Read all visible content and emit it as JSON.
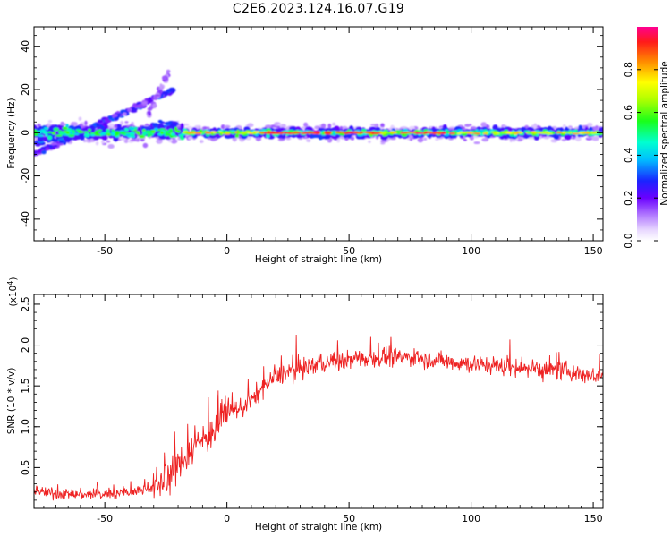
{
  "title": "C2E6.2023.124.16.07.G19",
  "chart_data": [
    {
      "type": "heatmap",
      "xlabel": "Height of straight line (km)",
      "ylabel": "Frequency (Hz)",
      "xlim": [
        -79,
        154
      ],
      "ylim": [
        -50,
        49
      ],
      "xticks": [
        "-50",
        "0",
        "50",
        "100",
        "150"
      ],
      "yticks": [
        "-40",
        "-20",
        "0",
        "20",
        "40"
      ],
      "colorbar": {
        "label": "Normalized spectral amplitude",
        "ticks": [
          "0.0",
          "0.2",
          "0.4",
          "0.6",
          "0.8"
        ],
        "range": [
          0,
          1
        ]
      },
      "features": [
        {
          "x": [
            -18,
            154
          ],
          "frequency": 0,
          "amplitude": [
            0.3,
            1.0
          ]
        },
        {
          "x": [
            -79,
            -18
          ],
          "frequency_start": 0,
          "frequency_end": 0,
          "amplitude": [
            0.2,
            0.6
          ]
        },
        {
          "x": [
            -79,
            -22
          ],
          "frequency_start": -10,
          "frequency_end": 20,
          "amplitude": [
            0.1,
            0.4
          ]
        }
      ]
    },
    {
      "type": "line",
      "xlabel": "Height of straight line (km)",
      "ylabel": "SNR (10 * v/v)",
      "scale_label": "(x10",
      "scale_exponent": "4",
      "scale_close": ")",
      "xlim": [
        -79,
        154
      ],
      "ylim": [
        0,
        2.62
      ],
      "xticks": [
        "-50",
        "0",
        "50",
        "100",
        "150"
      ],
      "yticks": [
        "0.5",
        "1.0",
        "1.5",
        "2.0",
        "2.5"
      ],
      "series": [
        {
          "color": "#ee2222",
          "x": [
            -79,
            -70,
            -60,
            -50,
            -40,
            -30,
            -25,
            -20,
            -15,
            -10,
            -5,
            0,
            5,
            10,
            15,
            20,
            30,
            40,
            50,
            60,
            70,
            80,
            90,
            100,
            110,
            120,
            130,
            140,
            150,
            154
          ],
          "values": [
            0.22,
            0.18,
            0.17,
            0.17,
            0.2,
            0.26,
            0.35,
            0.52,
            0.72,
            0.85,
            0.95,
            1.18,
            1.22,
            1.32,
            1.48,
            1.62,
            1.72,
            1.78,
            1.82,
            1.85,
            1.85,
            1.84,
            1.8,
            1.77,
            1.75,
            1.72,
            1.7,
            1.68,
            1.62,
            1.65
          ]
        }
      ]
    }
  ]
}
